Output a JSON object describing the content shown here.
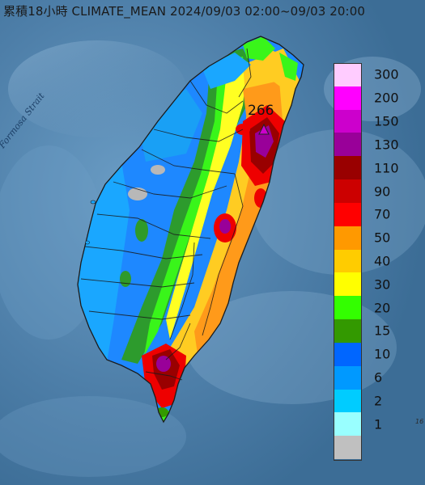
{
  "title": "累積18小時 CLIMATE_MEAN 2024/09/03 02:00~09/03 20:00",
  "strait_label": "Formosa Strait",
  "peak_value": "266",
  "corner_note": "16",
  "legend": [
    {
      "label": "300",
      "color": "#ffccff"
    },
    {
      "label": "200",
      "color": "#ff00ff"
    },
    {
      "label": "150",
      "color": "#cc00cc"
    },
    {
      "label": "130",
      "color": "#990099"
    },
    {
      "label": "110",
      "color": "#990000"
    },
    {
      "label": "90",
      "color": "#cc0000"
    },
    {
      "label": "70",
      "color": "#ff0000"
    },
    {
      "label": "50",
      "color": "#ff9900"
    },
    {
      "label": "40",
      "color": "#ffcc00"
    },
    {
      "label": "30",
      "color": "#ffff00"
    },
    {
      "label": "20",
      "color": "#33ff00"
    },
    {
      "label": "15",
      "color": "#339900"
    },
    {
      "label": "10",
      "color": "#0066ff"
    },
    {
      "label": "6",
      "color": "#0099ff"
    },
    {
      "label": "2",
      "color": "#00ccff"
    },
    {
      "label": "1",
      "color": "#99ffff"
    },
    {
      "label": "",
      "color": "#c0c0c0"
    }
  ]
}
